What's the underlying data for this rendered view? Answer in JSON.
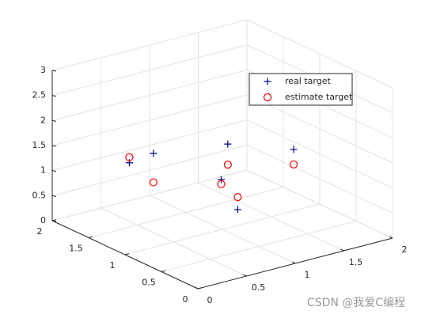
{
  "chart_data": {
    "type": "scatter3d",
    "xlim": [
      0,
      2
    ],
    "ylim": [
      0,
      2
    ],
    "zlim": [
      0,
      3
    ],
    "xticks": [
      0,
      0.5,
      1,
      1.5,
      2
    ],
    "yticks": [
      0,
      0.5,
      1,
      1.5,
      2
    ],
    "zticks": [
      0,
      0.5,
      1,
      1.5,
      2,
      2.5,
      3
    ],
    "grid": true,
    "legend": "northeast",
    "series": [
      {
        "name": "real target",
        "color": "#000080",
        "marker": "+",
        "x": [
          0.62,
          0.77,
          1.25,
          1.13,
          1.24,
          1.68
        ],
        "y": [
          1.77,
          1.64,
          1.26,
          1.19,
          1.11,
          0.93
        ],
        "z": [
          1.0,
          1.2,
          1.4,
          0.8,
          0.2,
          1.3
        ]
      },
      {
        "name": "estimate target",
        "color": "#ff0000",
        "marker": "o",
        "x": [
          0.62,
          0.77,
          1.25,
          1.13,
          1.24,
          1.68
        ],
        "y": [
          1.77,
          1.64,
          1.26,
          1.19,
          1.11,
          0.93
        ],
        "z": [
          1.11,
          0.62,
          0.99,
          0.71,
          0.45,
          1.0
        ]
      }
    ],
    "watermark": "CSDN @我爱C编程"
  }
}
